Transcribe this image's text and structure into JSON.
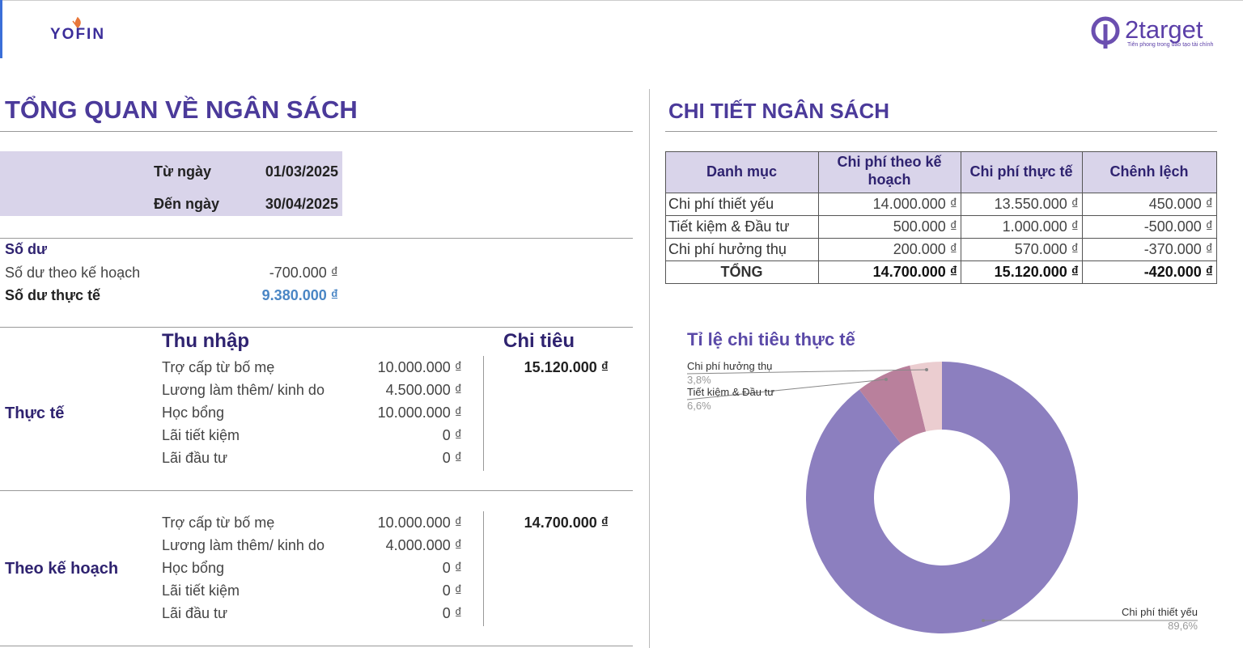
{
  "header": {
    "logo_left": "YOFIN",
    "logo_right": "2target",
    "tagline": "Tiên phong trong đào tạo tài chính"
  },
  "overview": {
    "title": "TỔNG QUAN VỀ NGÂN SÁCH",
    "dates": [
      [
        "Từ ngày",
        "01/03/2025"
      ],
      [
        "Đến ngày",
        "30/04/2025"
      ]
    ],
    "balance": {
      "heading": "Số dư",
      "rows": [
        [
          "Số dư theo kế hoạch",
          "-700.000 ₫"
        ],
        [
          "Số dư thực tế",
          "9.380.000 ₫"
        ]
      ]
    },
    "income_heading": "Thu nhập",
    "expense_heading": "Chi tiêu",
    "groups": [
      {
        "label": "Thực tế",
        "items": [
          [
            "Trợ cấp từ bố mẹ",
            "10.000.000 ₫"
          ],
          [
            "Lương làm thêm/ kinh do",
            "4.500.000 ₫"
          ],
          [
            "Học bổng",
            "10.000.000 ₫"
          ],
          [
            "Lãi tiết kiệm",
            "0 ₫"
          ],
          [
            "Lãi đầu tư",
            "0 ₫"
          ]
        ],
        "expense": "15.120.000 ₫"
      },
      {
        "label": "Theo kế hoạch",
        "items": [
          [
            "Trợ cấp từ bố mẹ",
            "10.000.000 ₫"
          ],
          [
            "Lương làm thêm/ kinh do",
            "4.000.000 ₫"
          ],
          [
            "Học bổng",
            "0 ₫"
          ],
          [
            "Lãi tiết kiệm",
            "0 ₫"
          ],
          [
            "Lãi đầu tư",
            "0 ₫"
          ]
        ],
        "expense": "14.700.000 ₫"
      }
    ]
  },
  "detail": {
    "title": "CHI TIẾT NGÂN SÁCH",
    "table": {
      "columns": [
        "Danh mục",
        "Chi phí theo kế hoạch",
        "Chi phí thực tế",
        "Chênh lệch"
      ],
      "rows": [
        [
          "Chi phí thiết yếu",
          "14.000.000 ₫",
          "13.550.000 ₫",
          "450.000 ₫"
        ],
        [
          "Tiết kiệm & Đầu tư",
          "500.000 ₫",
          "1.000.000 ₫",
          "-500.000 ₫"
        ],
        [
          "Chi phí hưởng thụ",
          "200.000 ₫",
          "570.000 ₫",
          "-370.000 ₫"
        ]
      ],
      "total": [
        "TỔNG",
        "14.700.000 ₫",
        "15.120.000 ₫",
        "-420.000 ₫"
      ]
    }
  },
  "chart": {
    "type": "pie",
    "title": "Tỉ lệ chi tiêu thực tế",
    "categories": [
      "Chi phí thiết yếu",
      "Tiết kiệm & Đầu tư",
      "Chi phí hưởng thụ"
    ],
    "values": [
      89.6,
      6.6,
      3.8
    ],
    "value_labels": [
      "89,6%",
      "6,6%",
      "3,8%"
    ],
    "colors": [
      "#8c7fbf",
      "#b9809c",
      "#ebcdd0"
    ]
  }
}
